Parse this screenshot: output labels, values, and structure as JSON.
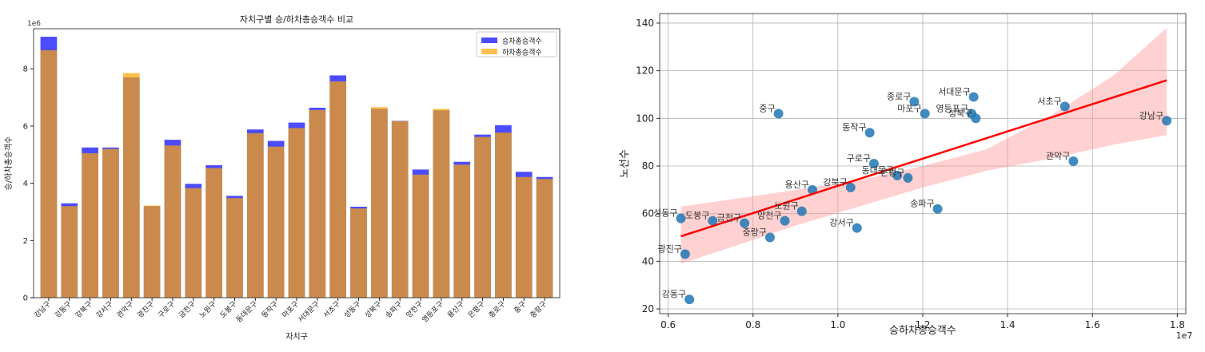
{
  "chart_data": [
    {
      "type": "bar",
      "title": "자치구별 승/하차총승객수 비교",
      "xlabel": "자치구",
      "ylabel": "승/하차총승객수",
      "y_offset_label": "1e6",
      "ylim": [
        0,
        9.4
      ],
      "yticks": [
        0,
        2,
        4,
        6,
        8
      ],
      "legend_position": "top-right",
      "grid": false,
      "categories": [
        "강남구",
        "강동구",
        "강북구",
        "강서구",
        "관악구",
        "광진구",
        "구로구",
        "금천구",
        "노원구",
        "도봉구",
        "동대문구",
        "동작구",
        "마포구",
        "서대문구",
        "서초구",
        "성동구",
        "성북구",
        "송파구",
        "양천구",
        "영등포구",
        "용산구",
        "은평구",
        "종로구",
        "중구",
        "중랑구"
      ],
      "series": [
        {
          "name": "승차총승객수",
          "color": "#0000ff",
          "values": [
            9.12,
            3.3,
            5.25,
            5.25,
            7.7,
            3.2,
            5.52,
            3.98,
            4.63,
            3.56,
            5.88,
            5.48,
            6.12,
            6.64,
            7.77,
            3.18,
            6.6,
            6.18,
            4.48,
            6.55,
            4.75,
            5.7,
            6.03,
            4.4,
            4.22
          ]
        },
        {
          "name": "하차총승객수",
          "color": "#ffa500",
          "values": [
            8.65,
            3.2,
            5.05,
            5.2,
            7.85,
            3.22,
            5.32,
            3.83,
            4.53,
            3.48,
            5.75,
            5.28,
            5.93,
            6.56,
            7.56,
            3.12,
            6.66,
            6.17,
            4.3,
            6.6,
            4.65,
            5.62,
            5.77,
            4.22,
            4.15
          ]
        }
      ]
    },
    {
      "type": "scatter",
      "xlabel": "승하차총승객수",
      "ylabel": "노선수",
      "x_offset_label": "1e7",
      "xlim": [
        0.58,
        1.82
      ],
      "ylim": [
        18,
        144
      ],
      "xticks": [
        0.6,
        0.8,
        1.0,
        1.2,
        1.4,
        1.6,
        1.8
      ],
      "yticks": [
        20,
        40,
        60,
        80,
        100,
        120,
        140
      ],
      "grid": true,
      "point_color": "#1f77b4",
      "regression": {
        "color": "#ff0000",
        "band_color": "#ff9999",
        "x": [
          0.63,
          1.775
        ],
        "y": [
          50.5,
          116
        ]
      },
      "band": {
        "x": [
          0.63,
          0.75,
          0.9,
          1.05,
          1.2,
          1.35,
          1.5,
          1.65,
          1.775
        ],
        "lower": [
          39,
          46,
          55,
          63,
          71,
          78,
          83,
          89,
          93
        ],
        "upper": [
          63,
          66,
          70,
          74,
          80,
          87,
          101,
          118,
          138
        ]
      },
      "points": [
        {
          "label": "강남구",
          "x": 1.775,
          "y": 99
        },
        {
          "label": "강동구",
          "x": 0.65,
          "y": 24
        },
        {
          "label": "강북구",
          "x": 1.03,
          "y": 71
        },
        {
          "label": "강서구",
          "x": 1.045,
          "y": 54
        },
        {
          "label": "관악구",
          "x": 1.555,
          "y": 82
        },
        {
          "label": "광진구",
          "x": 0.64,
          "y": 43
        },
        {
          "label": "구로구",
          "x": 1.085,
          "y": 81
        },
        {
          "label": "금천구",
          "x": 0.78,
          "y": 56
        },
        {
          "label": "노원구",
          "x": 0.915,
          "y": 61
        },
        {
          "label": "도봉구",
          "x": 0.705,
          "y": 57
        },
        {
          "label": "동대문구",
          "x": 1.14,
          "y": 76
        },
        {
          "label": "동작구",
          "x": 1.075,
          "y": 94
        },
        {
          "label": "마포구",
          "x": 1.205,
          "y": 102
        },
        {
          "label": "서대문구",
          "x": 1.32,
          "y": 109
        },
        {
          "label": "서초구",
          "x": 1.535,
          "y": 105
        },
        {
          "label": "성동구",
          "x": 0.63,
          "y": 58
        },
        {
          "label": "성북구",
          "x": 1.325,
          "y": 100
        },
        {
          "label": "송파구",
          "x": 1.235,
          "y": 62
        },
        {
          "label": "양천구",
          "x": 0.875,
          "y": 57
        },
        {
          "label": "영등포구",
          "x": 1.315,
          "y": 102
        },
        {
          "label": "용산구",
          "x": 0.94,
          "y": 70
        },
        {
          "label": "은평구",
          "x": 1.165,
          "y": 75
        },
        {
          "label": "종로구",
          "x": 1.18,
          "y": 107
        },
        {
          "label": "중구",
          "x": 0.86,
          "y": 102
        },
        {
          "label": "중랑구",
          "x": 0.84,
          "y": 50
        }
      ]
    }
  ]
}
